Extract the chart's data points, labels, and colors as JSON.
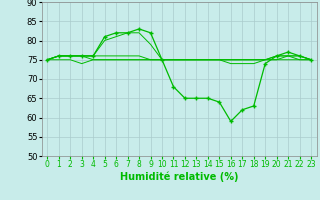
{
  "x": [
    0,
    1,
    2,
    3,
    4,
    5,
    6,
    7,
    8,
    9,
    10,
    11,
    12,
    13,
    14,
    15,
    16,
    17,
    18,
    19,
    20,
    21,
    22,
    23
  ],
  "series_with_markers": [
    [
      75,
      76,
      76,
      76,
      76,
      81,
      82,
      82,
      83,
      82,
      75,
      68,
      65,
      65,
      65,
      64,
      59,
      62,
      63,
      74,
      76,
      77,
      76,
      75
    ]
  ],
  "series_no_markers": [
    [
      75,
      76,
      76,
      76,
      76,
      80,
      81,
      82,
      82,
      79,
      75,
      75,
      75,
      75,
      75,
      75,
      74,
      74,
      74,
      75,
      76,
      76,
      76,
      75
    ],
    [
      75,
      75,
      75,
      74,
      75,
      75,
      75,
      75,
      75,
      75,
      75,
      75,
      75,
      75,
      75,
      75,
      75,
      75,
      75,
      75,
      75,
      75,
      75,
      75
    ],
    [
      75,
      76,
      76,
      76,
      76,
      76,
      76,
      76,
      76,
      75,
      75,
      75,
      75,
      75,
      75,
      75,
      75,
      75,
      75,
      75,
      75,
      76,
      76,
      75
    ],
    [
      75,
      76,
      76,
      76,
      75,
      75,
      75,
      75,
      75,
      75,
      75,
      75,
      75,
      75,
      75,
      75,
      75,
      75,
      75,
      75,
      76,
      76,
      75,
      75
    ]
  ],
  "line_color": "#00bb00",
  "marker": "+",
  "marker_size": 3.5,
  "bg_color": "#c8ecea",
  "grid_color": "#aacccc",
  "xlabel": "Humidité relative (%)",
  "ylim": [
    50,
    90
  ],
  "xlim": [
    -0.5,
    23.5
  ],
  "yticks": [
    50,
    55,
    60,
    65,
    70,
    75,
    80,
    85,
    90
  ],
  "xticks": [
    0,
    1,
    2,
    3,
    4,
    5,
    6,
    7,
    8,
    9,
    10,
    11,
    12,
    13,
    14,
    15,
    16,
    17,
    18,
    19,
    20,
    21,
    22,
    23
  ],
  "xlabel_fontsize": 7,
  "tick_fontsize": 5.5,
  "ytick_fontsize": 6
}
